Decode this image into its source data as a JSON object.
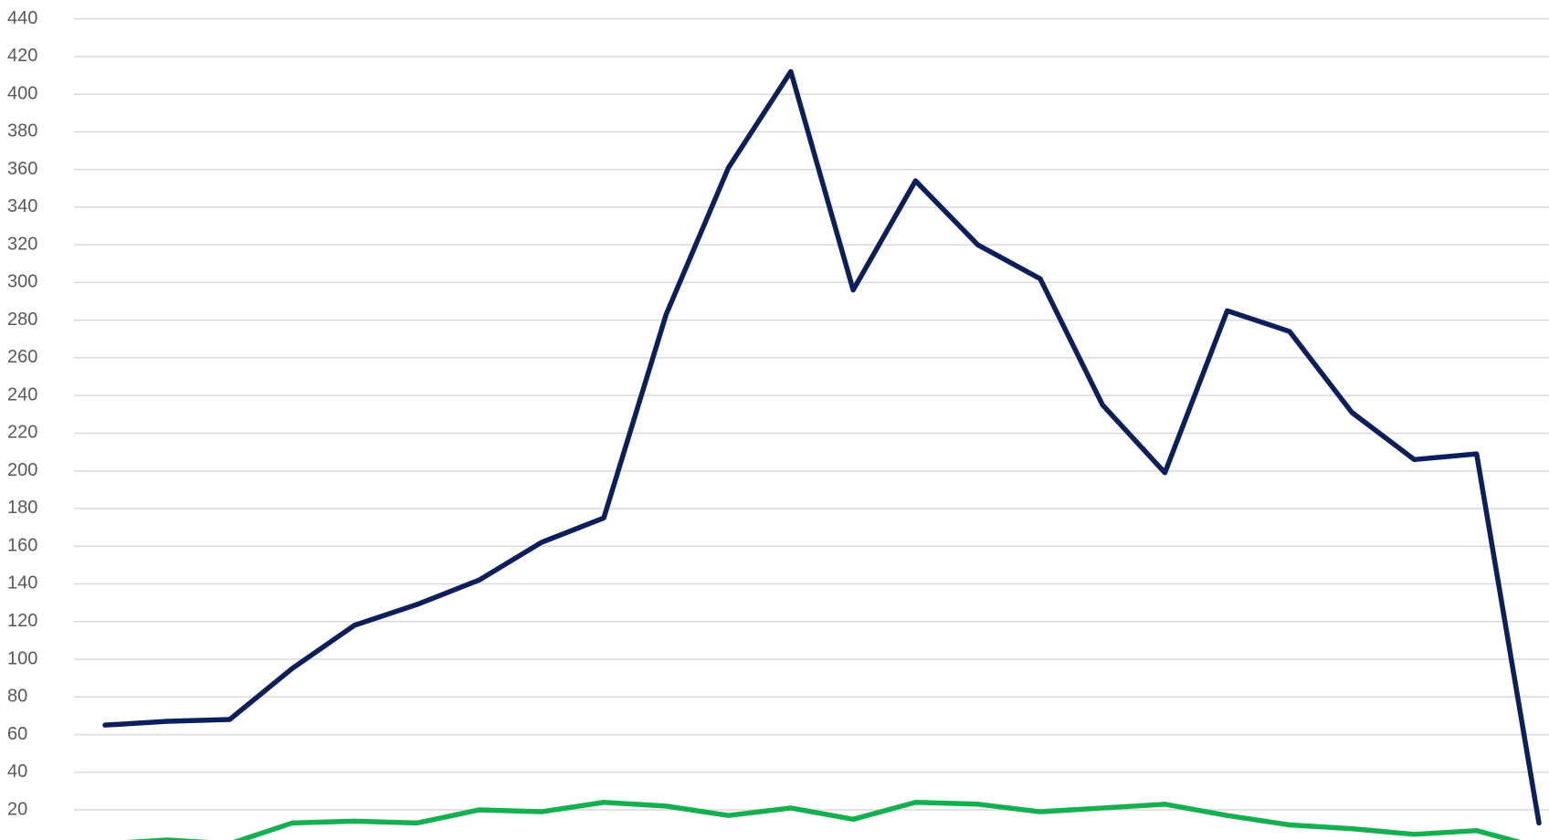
{
  "chart_data": {
    "type": "line",
    "categories": [
      null,
      null,
      null,
      null,
      null,
      null,
      null,
      null,
      null,
      null,
      null,
      null,
      null,
      null,
      null,
      null,
      null,
      null,
      null,
      null,
      null,
      null,
      null,
      null
    ],
    "series": [
      {
        "color": "#0b1f5c",
        "values": [
          65,
          67,
          68,
          95,
          118,
          129,
          142,
          162,
          175,
          283,
          361,
          412,
          296,
          354,
          320,
          302,
          235,
          199,
          285,
          274,
          231,
          206,
          209,
          13
        ]
      },
      {
        "color": "#14b050",
        "values": [
          2,
          4,
          2,
          13,
          14,
          13,
          20,
          19,
          24,
          22,
          17,
          21,
          15,
          24,
          23,
          19,
          21,
          23,
          17,
          12,
          10,
          7,
          9,
          0
        ]
      }
    ],
    "ylim": [
      4,
      450
    ],
    "yticks": [
      20,
      40,
      60,
      80,
      100,
      120,
      140,
      160,
      180,
      200,
      220,
      240,
      260,
      280,
      300,
      320,
      340,
      360,
      380,
      400,
      420,
      440
    ],
    "grid": true
  }
}
